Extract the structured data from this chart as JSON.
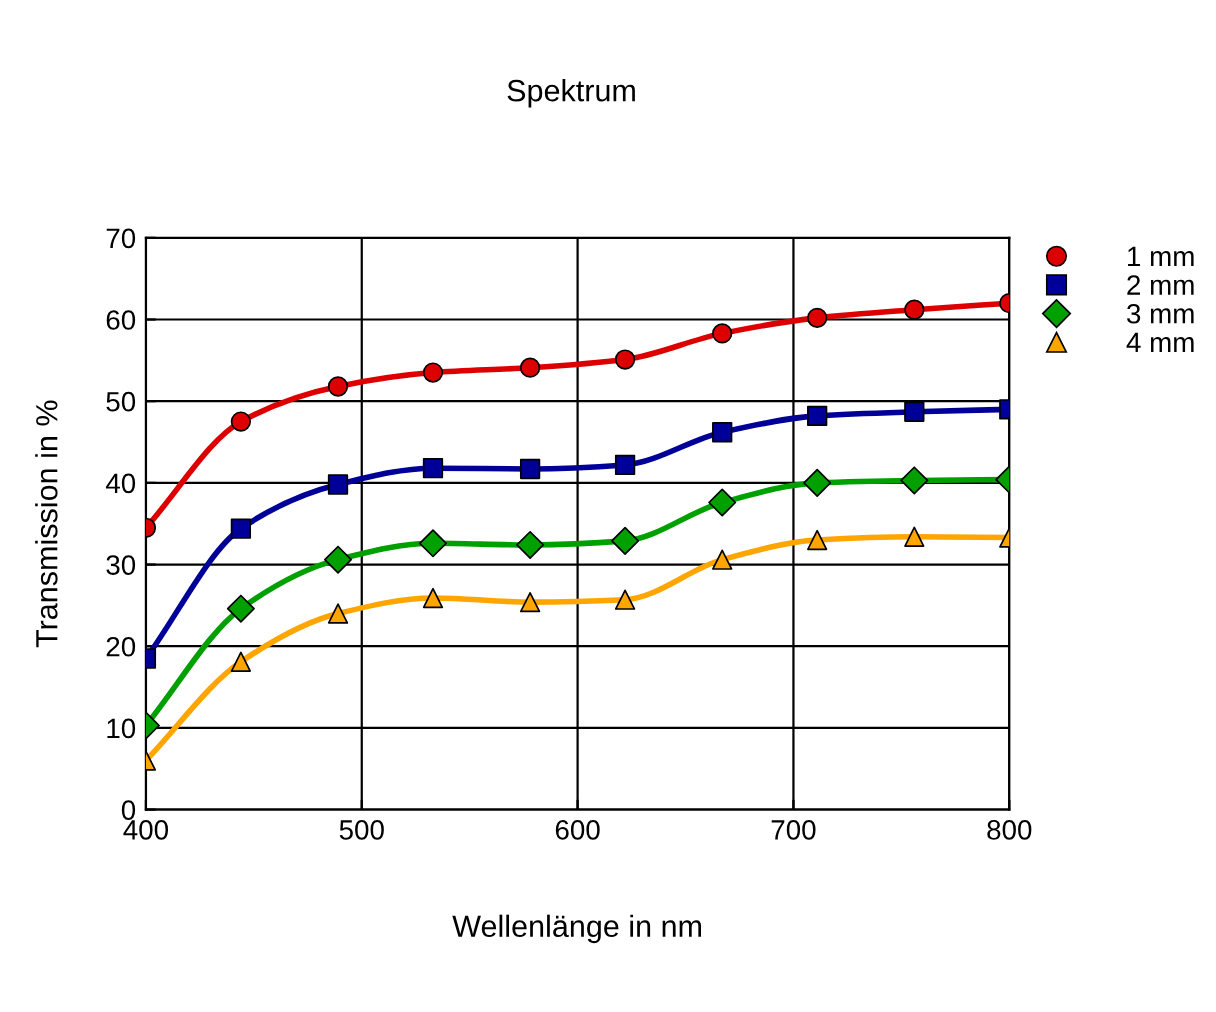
{
  "chart_data": {
    "type": "line",
    "title": "Spektrum",
    "xlabel": "Wellenlänge in nm",
    "ylabel": "Transmission in %",
    "x": [
      400,
      444,
      489,
      533,
      578,
      622,
      667,
      711,
      756,
      800
    ],
    "series": [
      {
        "name": "1 mm",
        "color": "#dd0000",
        "marker": "circle",
        "values": [
          34.5,
          47.5,
          51.8,
          53.5,
          54.1,
          55.1,
          58.3,
          60.2,
          61.2,
          62.0
        ]
      },
      {
        "name": "2 mm",
        "color": "#000099",
        "marker": "square",
        "values": [
          18.5,
          34.4,
          39.8,
          41.8,
          41.7,
          42.2,
          46.2,
          48.2,
          48.7,
          49.0
        ]
      },
      {
        "name": "3 mm",
        "color": "#00a000",
        "marker": "diamond",
        "values": [
          10.3,
          24.6,
          30.6,
          32.6,
          32.4,
          32.9,
          37.6,
          40.0,
          40.3,
          40.4
        ]
      },
      {
        "name": "4 mm",
        "color": "#ffa500",
        "marker": "triangle",
        "values": [
          6.0,
          18.1,
          24.0,
          25.9,
          25.4,
          25.7,
          30.6,
          33.0,
          33.4,
          33.3
        ]
      }
    ],
    "xlim": [
      400,
      800
    ],
    "ylim": [
      0,
      70
    ],
    "xticks": [
      400,
      500,
      600,
      700,
      800
    ],
    "yticks": [
      0,
      10,
      20,
      30,
      40,
      50,
      60,
      70
    ],
    "grid": true,
    "legend": "top right",
    "line_style": "solid"
  }
}
